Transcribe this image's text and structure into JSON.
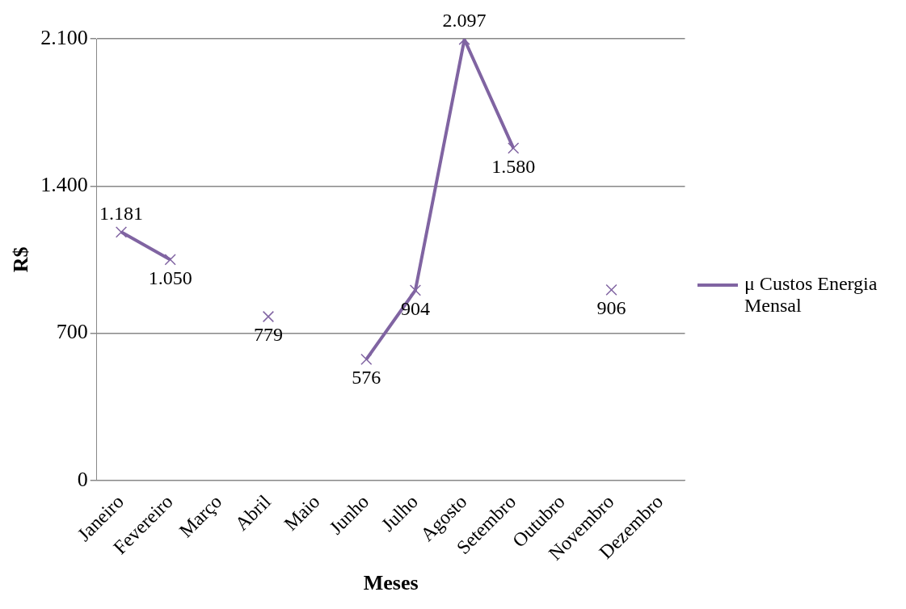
{
  "chart_data": {
    "type": "line",
    "xlabel": "Meses",
    "ylabel": "R$",
    "categories": [
      "Janeiro",
      "Fevereiro",
      "Março",
      "Abril",
      "Maio",
      "Junho",
      "Julho",
      "Agosto",
      "Setembro",
      "Outubro",
      "Novembro",
      "Dezembro"
    ],
    "series": [
      {
        "name": "μ Custos Energia Mensal",
        "color": "#8064a2",
        "values": [
          1181,
          1050,
          null,
          779,
          null,
          576,
          904,
          2097,
          1580,
          null,
          906,
          null
        ],
        "value_labels": [
          "1.181",
          "1.050",
          null,
          "779",
          null,
          "576",
          "904",
          "2.097",
          "1.580",
          null,
          "906",
          null
        ]
      }
    ],
    "ylim": [
      0,
      2100
    ],
    "yticks": [
      0,
      700,
      {
        "value": 1400,
        "label": "1.400"
      },
      {
        "value": 2100,
        "label": "2.100"
      }
    ],
    "grid": "y",
    "legend": "right",
    "marker": "cross",
    "line_style": "solid"
  }
}
